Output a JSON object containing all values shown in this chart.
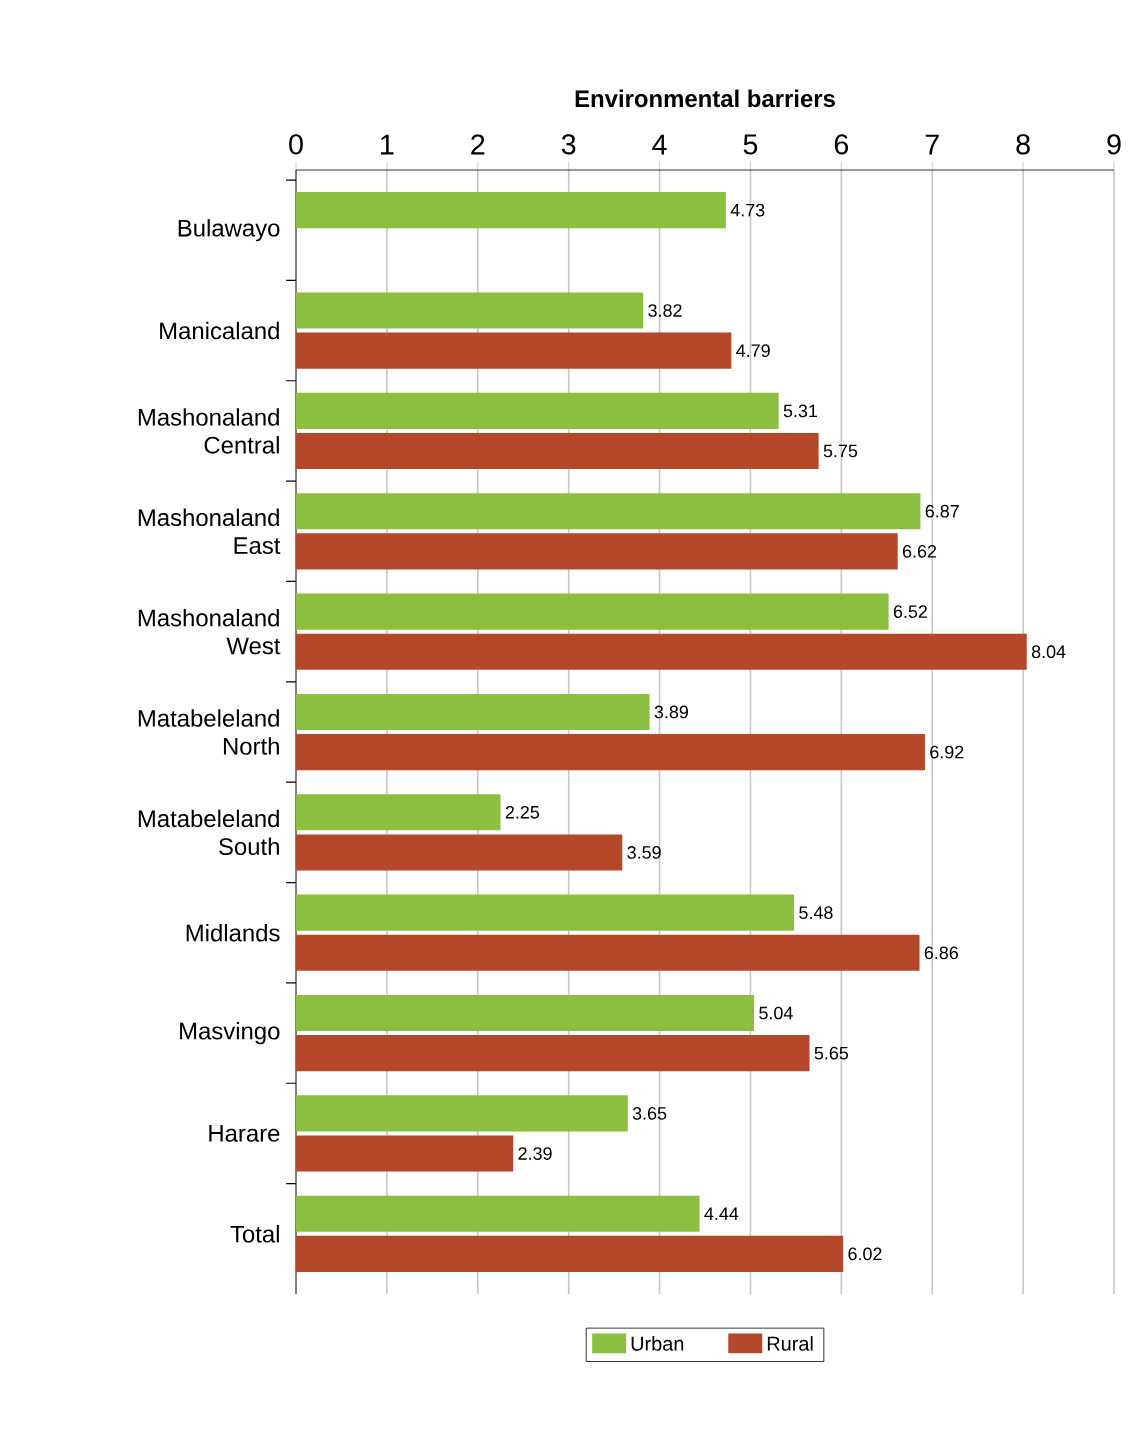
{
  "chart_data": {
    "type": "bar",
    "orientation": "horizontal",
    "title": "Environmental barriers",
    "categories": [
      "Bulawayo",
      "Manicaland",
      "Mashonaland Central",
      "Mashonaland East",
      "Mashonaland West",
      "Matabeleland North",
      "Matabeleland South",
      "Midlands",
      "Masvingo",
      "Harare",
      "Total"
    ],
    "series": [
      {
        "name": "Urban",
        "color": "#8cbf3f",
        "values": [
          4.73,
          3.82,
          5.31,
          6.87,
          6.52,
          3.89,
          2.25,
          5.48,
          5.04,
          3.65,
          4.44
        ]
      },
      {
        "name": "Rural",
        "color": "#b5472a",
        "values": [
          null,
          4.79,
          5.75,
          6.62,
          8.04,
          6.92,
          3.59,
          6.86,
          5.65,
          2.39,
          6.02
        ]
      }
    ],
    "xlim": [
      0,
      9
    ],
    "xticks": [
      0,
      1,
      2,
      3,
      4,
      5,
      6,
      7,
      8,
      9
    ],
    "grid": "x",
    "legend": "bottom",
    "data_labels": true
  }
}
